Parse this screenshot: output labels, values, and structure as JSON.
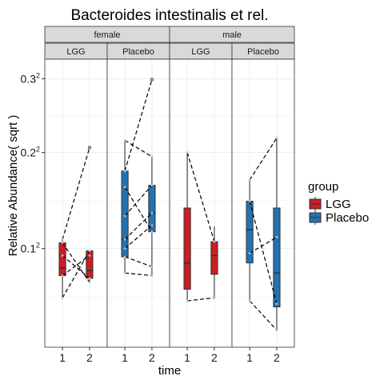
{
  "chart_data": {
    "type": "boxplot",
    "title": "Bacteroides intestinalis et rel.",
    "xlabel": "time",
    "ylabel": "Relative Abundance( sqrt )",
    "y_ticks": [
      {
        "value": 0.1,
        "base": "0.1",
        "sup": "2"
      },
      {
        "value": 0.2,
        "base": "0.2",
        "sup": "2"
      },
      {
        "value": 0.3,
        "base": "0.3",
        "sup": "2"
      }
    ],
    "x_ticks": [
      "1",
      "2"
    ],
    "ylim": [
      0.033,
      0.33
    ],
    "legend": {
      "title": "group",
      "position": "right",
      "items": [
        {
          "label": "LGG",
          "color": "#cb1d24"
        },
        {
          "label": "Placebo",
          "color": "#2372b2"
        }
      ]
    },
    "facets": [
      {
        "sex": "female",
        "group": "LGG",
        "color": "#cb1d24",
        "boxes": [
          {
            "time": "1",
            "whisker_low": 0.062,
            "q1": 0.078,
            "median": 0.084,
            "q3": 0.105,
            "whisker_high": 0.108
          },
          {
            "time": "2",
            "whisker_low": 0.073,
            "q1": 0.076,
            "median": 0.082,
            "q3": 0.098,
            "whisker_high": 0.098
          }
        ],
        "outliers": [
          {
            "time": "2",
            "value": 0.206
          }
        ],
        "subjects": [
          [
            0.108,
            0.206
          ],
          [
            0.105,
            0.073
          ],
          [
            0.094,
            0.076
          ],
          [
            0.078,
            0.094
          ],
          [
            0.062,
            0.098
          ]
        ]
      },
      {
        "sex": "female",
        "group": "Placebo",
        "color": "#2372b2",
        "boxes": [
          {
            "time": "1",
            "whisker_low": 0.08,
            "q1": 0.093,
            "median": 0.108,
            "q3": 0.178,
            "whisker_high": 0.215
          },
          {
            "time": "2",
            "whisker_low": 0.078,
            "q1": 0.115,
            "median": 0.133,
            "q3": 0.162,
            "whisker_high": 0.195
          }
        ],
        "outliers": [
          {
            "time": "2",
            "value": 0.299
          }
        ],
        "subjects": [
          [
            0.215,
            0.195
          ],
          [
            0.178,
            0.299
          ],
          [
            0.16,
            0.115
          ],
          [
            0.13,
            0.162
          ],
          [
            0.108,
            0.133
          ],
          [
            0.1,
            0.121
          ],
          [
            0.093,
            0.085
          ],
          [
            0.08,
            0.078
          ]
        ]
      },
      {
        "sex": "male",
        "group": "LGG",
        "color": "#cb1d24",
        "boxes": [
          {
            "time": "1",
            "whisker_low": 0.06,
            "q1": 0.068,
            "median": 0.088,
            "q3": 0.138,
            "whisker_high": 0.2
          },
          {
            "time": "2",
            "whisker_low": 0.062,
            "q1": 0.079,
            "median": 0.094,
            "q3": 0.106,
            "whisker_high": 0.12
          }
        ],
        "outliers": [],
        "subjects": [
          [
            0.2,
            0.106
          ],
          [
            0.06,
            0.062
          ]
        ]
      },
      {
        "sex": "male",
        "group": "Placebo",
        "color": "#2372b2",
        "boxes": [
          {
            "time": "1",
            "whisker_low": 0.06,
            "q1": 0.088,
            "median": 0.117,
            "q3": 0.145,
            "whisker_high": 0.168
          },
          {
            "time": "2",
            "whisker_low": 0.042,
            "q1": 0.056,
            "median": 0.08,
            "q3": 0.138,
            "whisker_high": 0.218
          }
        ],
        "outliers": [],
        "subjects": [
          [
            0.168,
            0.218
          ],
          [
            0.145,
            0.058
          ],
          [
            0.096,
            0.11
          ],
          [
            0.06,
            0.042
          ]
        ]
      }
    ],
    "grid": true,
    "theme": "light"
  }
}
